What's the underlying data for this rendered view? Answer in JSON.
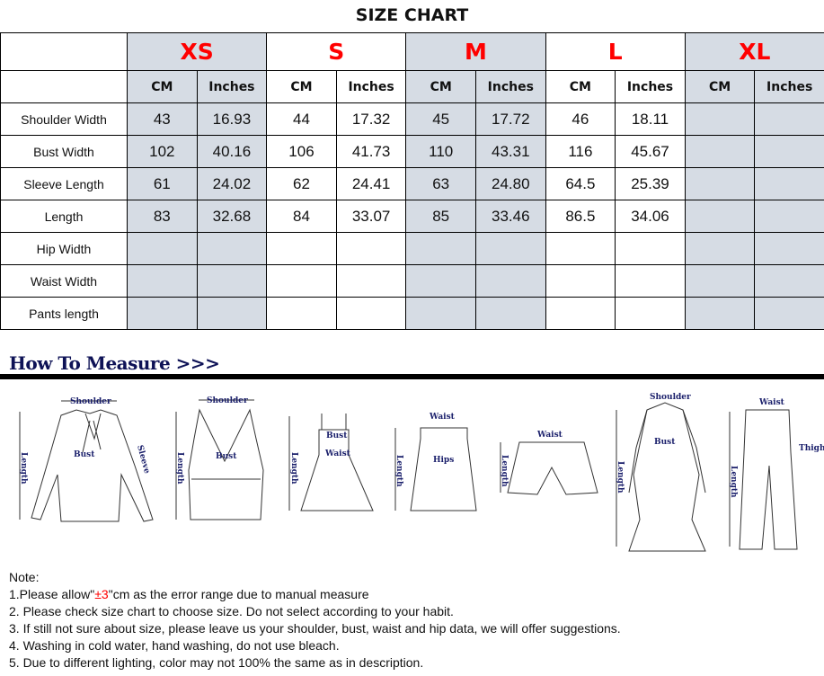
{
  "title": "SIZE CHART",
  "sizes": [
    "XS",
    "S",
    "M",
    "L",
    "XL"
  ],
  "units": [
    "CM",
    "Inches"
  ],
  "rows": [
    {
      "label": "Shoulder Width",
      "v": [
        "43",
        "16.93",
        "44",
        "17.32",
        "45",
        "17.72",
        "46",
        "18.11",
        "",
        ""
      ]
    },
    {
      "label": "Bust Width",
      "v": [
        "102",
        "40.16",
        "106",
        "41.73",
        "110",
        "43.31",
        "116",
        "45.67",
        "",
        ""
      ]
    },
    {
      "label": "Sleeve Length",
      "v": [
        "61",
        "24.02",
        "62",
        "24.41",
        "63",
        "24.80",
        "64.5",
        "25.39",
        "",
        ""
      ]
    },
    {
      "label": "Length",
      "v": [
        "83",
        "32.68",
        "84",
        "33.07",
        "85",
        "33.46",
        "86.5",
        "34.06",
        "",
        ""
      ]
    },
    {
      "label": "Hip Width",
      "v": [
        "",
        "",
        "",
        "",
        "",
        "",
        "",
        "",
        "",
        ""
      ]
    },
    {
      "label": "Waist Width",
      "v": [
        "",
        "",
        "",
        "",
        "",
        "",
        "",
        "",
        "",
        ""
      ]
    },
    {
      "label": "Pants length",
      "v": [
        "",
        "",
        "",
        "",
        "",
        "",
        "",
        "",
        "",
        ""
      ]
    }
  ],
  "how_to_measure": "How To Measure >>>",
  "figure_labels": {
    "shoulder": "Shoulder",
    "bust": "Bust",
    "length": "Length",
    "sleeve": "Sleeve",
    "waist": "Waist",
    "hips": "Hips",
    "thigh": "Thigh"
  },
  "notes": {
    "heading": "Note:",
    "line1_pre": "1.Please allow\"",
    "line1_red": "±3",
    "line1_post": "\"cm as the error range due to manual measure",
    "line2": "2. Please check size chart to choose size. Do not select according to your habit.",
    "line3": "3. If still not sure about size, please leave us your shoulder, bust, waist and hip data, we will offer suggestions.",
    "line4": "4. Washing in cold water, hand washing, do not use bleach.",
    "line5": "5. Due to different lighting, color may not 100% the same as in description."
  },
  "colors": {
    "size_label": "#ff0000",
    "shaded_column": "#d6dce4",
    "heading": "#0e1256"
  }
}
